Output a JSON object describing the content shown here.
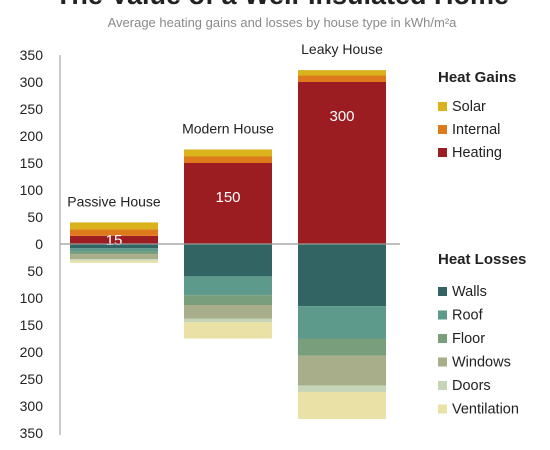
{
  "chart_data": {
    "type": "bar",
    "title": "The Value of a Well-Insulated Home",
    "subtitle": "Average heating gains and losses by house type in kWh/m²a",
    "yticks": [
      350,
      300,
      250,
      200,
      150,
      100,
      50,
      0,
      50,
      100,
      150,
      200,
      250,
      300,
      350
    ],
    "ylim": [
      -350,
      350
    ],
    "categories": [
      "Passive House",
      "Modern House",
      "Leaky House"
    ],
    "gains_legend_title": "Heat Gains",
    "losses_legend_title": "Heat Losses",
    "gains": [
      {
        "name": "Heating",
        "color": "#9b1d21",
        "values": [
          15,
          150,
          300
        ]
      },
      {
        "name": "Internal",
        "color": "#df7a1c",
        "values": [
          12,
          12,
          12
        ]
      },
      {
        "name": "Solar",
        "color": "#d9b21c",
        "values": [
          13,
          13,
          10
        ]
      }
    ],
    "losses": [
      {
        "name": "Walls",
        "color": "#336464",
        "values": [
          8,
          60,
          115
        ]
      },
      {
        "name": "Roof",
        "color": "#5d9a8c",
        "values": [
          6,
          35,
          60
        ]
      },
      {
        "name": "Floor",
        "color": "#789e7b",
        "values": [
          5,
          18,
          32
        ]
      },
      {
        "name": "Windows",
        "color": "#a8ae89",
        "values": [
          9,
          25,
          55
        ]
      },
      {
        "name": "Doors",
        "color": "#c6d5b7",
        "values": [
          3,
          7,
          12
        ]
      },
      {
        "name": "Ventilation",
        "color": "#e9e1a5",
        "values": [
          4,
          30,
          50
        ]
      }
    ],
    "data_labels": [
      "15",
      "150",
      "300"
    ]
  }
}
